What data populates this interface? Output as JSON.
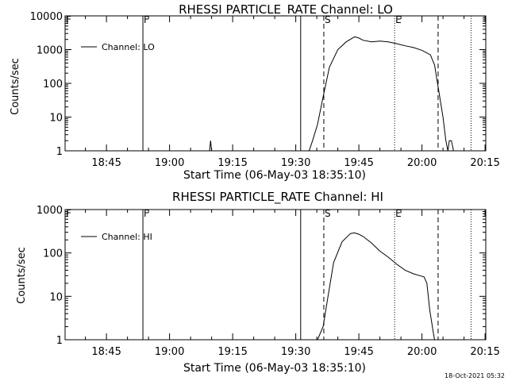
{
  "chart_data": [
    {
      "type": "line",
      "title": "RHESSI PARTICLE_RATE Channel: LO",
      "xlabel": "Start Time (06-May-03 18:35:10)",
      "ylabel": "Counts/sec",
      "xscale": "time",
      "yscale": "log",
      "xlim": [
        "18:35:10",
        "20:15:10"
      ],
      "ylim": [
        1,
        10000
      ],
      "xticks": [
        "18:45",
        "19:00",
        "19:15",
        "19:30",
        "19:45",
        "20:00",
        "20:15"
      ],
      "yticks": [
        "1",
        "10",
        "100",
        "1000",
        "10000"
      ],
      "legend": {
        "placement": "top-left"
      },
      "series": [
        {
          "name": "Channel: LO",
          "x": [
            "19:09:30",
            "19:09:45",
            "19:10:00",
            "19:33:10",
            "19:34:00",
            "19:35:10",
            "19:36:30",
            "19:38:00",
            "19:40:00",
            "19:42:00",
            "19:44:00",
            "19:45:00",
            "19:46:00",
            "19:48:00",
            "19:50:00",
            "19:52:00",
            "19:54:00",
            "19:56:00",
            "19:58:00",
            "20:00:00",
            "20:02:00",
            "20:03:00",
            "20:03:50",
            "20:05:00",
            "20:05:40",
            "20:06:10",
            "20:06:30",
            "20:07:00",
            "20:07:30"
          ],
          "y": [
            1,
            2,
            1,
            1,
            2,
            6,
            40,
            300,
            1000,
            1700,
            2400,
            2200,
            1900,
            1700,
            1800,
            1700,
            1500,
            1300,
            1150,
            950,
            700,
            350,
            80,
            10,
            2,
            1,
            2,
            2,
            1
          ]
        }
      ],
      "markers": [
        {
          "label": "F",
          "time": "18:35:10",
          "style": "dotted"
        },
        {
          "label": "F",
          "time": "18:53:40",
          "style": "solid"
        },
        {
          "label": "",
          "time": "19:31:10",
          "style": "solid"
        },
        {
          "label": "S",
          "time": "19:36:40",
          "style": "dashed"
        },
        {
          "label": "E",
          "time": "19:53:30",
          "style": "dotted"
        },
        {
          "label": "",
          "time": "20:03:50",
          "style": "dashed"
        },
        {
          "label": "",
          "time": "20:11:40",
          "style": "dotted"
        }
      ]
    },
    {
      "type": "line",
      "title": "RHESSI PARTICLE_RATE Channel: HI",
      "xlabel": "Start Time (06-May-03 18:35:10)",
      "ylabel": "Counts/sec",
      "xscale": "time",
      "yscale": "log",
      "xlim": [
        "18:35:10",
        "20:15:10"
      ],
      "ylim": [
        1,
        1000
      ],
      "xticks": [
        "18:45",
        "19:00",
        "19:15",
        "19:30",
        "19:45",
        "20:00",
        "20:15"
      ],
      "yticks": [
        "1",
        "10",
        "100",
        "1000"
      ],
      "legend": {
        "placement": "top-left"
      },
      "series": [
        {
          "name": "Channel: HI",
          "x": [
            "19:35:10",
            "19:36:30",
            "19:37:30",
            "19:39:00",
            "19:41:00",
            "19:43:00",
            "19:44:00",
            "19:45:00",
            "19:46:00",
            "19:48:00",
            "19:50:00",
            "19:52:00",
            "19:54:00",
            "19:56:00",
            "19:58:00",
            "19:59:30",
            "20:00:30",
            "20:01:10",
            "20:01:50",
            "20:02:40",
            "20:03:00"
          ],
          "y": [
            1,
            2,
            8,
            60,
            180,
            280,
            290,
            270,
            240,
            170,
            110,
            80,
            55,
            40,
            33,
            30,
            28,
            20,
            5,
            1.5,
            1
          ]
        }
      ],
      "markers": [
        {
          "label": "F",
          "time": "18:35:10",
          "style": "dotted"
        },
        {
          "label": "F",
          "time": "18:53:40",
          "style": "solid"
        },
        {
          "label": "",
          "time": "19:31:10",
          "style": "solid"
        },
        {
          "label": "S",
          "time": "19:36:40",
          "style": "dashed"
        },
        {
          "label": "E",
          "time": "19:53:30",
          "style": "dotted"
        },
        {
          "label": "",
          "time": "20:03:50",
          "style": "dashed"
        },
        {
          "label": "",
          "time": "20:11:40",
          "style": "dotted"
        }
      ]
    }
  ],
  "footer": {
    "timestamp": "18-Oct-2021 05:32"
  }
}
